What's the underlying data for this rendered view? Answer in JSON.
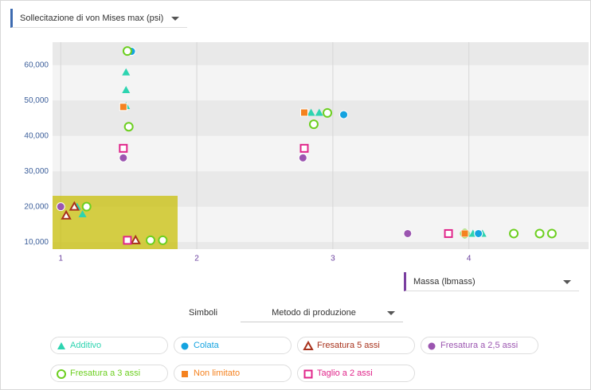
{
  "chart_data": {
    "type": "scatter",
    "y_label": "Sollecitazione di von Mises max (psi)",
    "x_label": "Massa (lbmass)",
    "xlim": [
      0.94,
      4.88
    ],
    "xticks": [
      1,
      2,
      3,
      4
    ],
    "ylim": [
      8000,
      66500
    ],
    "yticks": [
      {
        "value": 10000,
        "label": "10,000"
      },
      {
        "value": 20000,
        "label": "20,000"
      },
      {
        "value": 30000,
        "label": "30,000"
      },
      {
        "value": 40000,
        "label": "40,000"
      },
      {
        "value": 50000,
        "label": "50,000"
      },
      {
        "value": 60000,
        "label": "60,000"
      }
    ],
    "grid": true,
    "series": [
      {
        "name": "Additivo",
        "color": "#2dd4b0",
        "marker": "triangle",
        "x": [
          1.48,
          1.48,
          1.48,
          1.12,
          1.16,
          2.8,
          2.84,
          2.9,
          3.98,
          4.03,
          4.1
        ],
        "values": [
          58000,
          53000,
          48500,
          20000,
          17900,
          46600,
          46600,
          46600,
          12400,
          12400,
          12400
        ]
      },
      {
        "name": "Colata",
        "color": "#14a3e0",
        "marker": "circle",
        "x": [
          1.52,
          3.08,
          4.07
        ],
        "values": [
          63900,
          46000,
          12400
        ]
      },
      {
        "name": "Fresatura 5 assi",
        "color": "#a8321c",
        "marker": "triangle-outline",
        "x": [
          1.55,
          1.1,
          1.04
        ],
        "values": [
          10500,
          20000,
          17500
        ]
      },
      {
        "name": "Fresatura a 2,5 assi",
        "color": "#9b55b0",
        "marker": "circle",
        "x": [
          1.46,
          2.78,
          3.55,
          1.0
        ],
        "values": [
          33800,
          33800,
          12400,
          20000
        ]
      },
      {
        "name": "Fresatura a 3 assi",
        "color": "#6ccf1f",
        "marker": "circle-outline",
        "x": [
          1.49,
          1.5,
          2.86,
          2.96,
          1.19,
          1.66,
          1.75,
          3.97,
          4.33,
          4.52,
          4.61
        ],
        "values": [
          64000,
          42600,
          43300,
          46500,
          20000,
          10500,
          10500,
          12400,
          12400,
          12400,
          12400
        ]
      },
      {
        "name": "Non limitato",
        "color": "#f5821f",
        "marker": "square",
        "x": [
          1.46,
          2.79,
          3.97
        ],
        "values": [
          48200,
          46600,
          12400
        ]
      },
      {
        "name": "Taglio a 2 assi",
        "color": "#e0258a",
        "marker": "square-outline",
        "x": [
          1.46,
          2.79,
          1.49,
          3.85
        ],
        "values": [
          36500,
          36500,
          10500,
          12400
        ]
      }
    ]
  },
  "controls": {
    "symbols_label": "Simboli",
    "symbols_value": "Metodo di produzione"
  }
}
